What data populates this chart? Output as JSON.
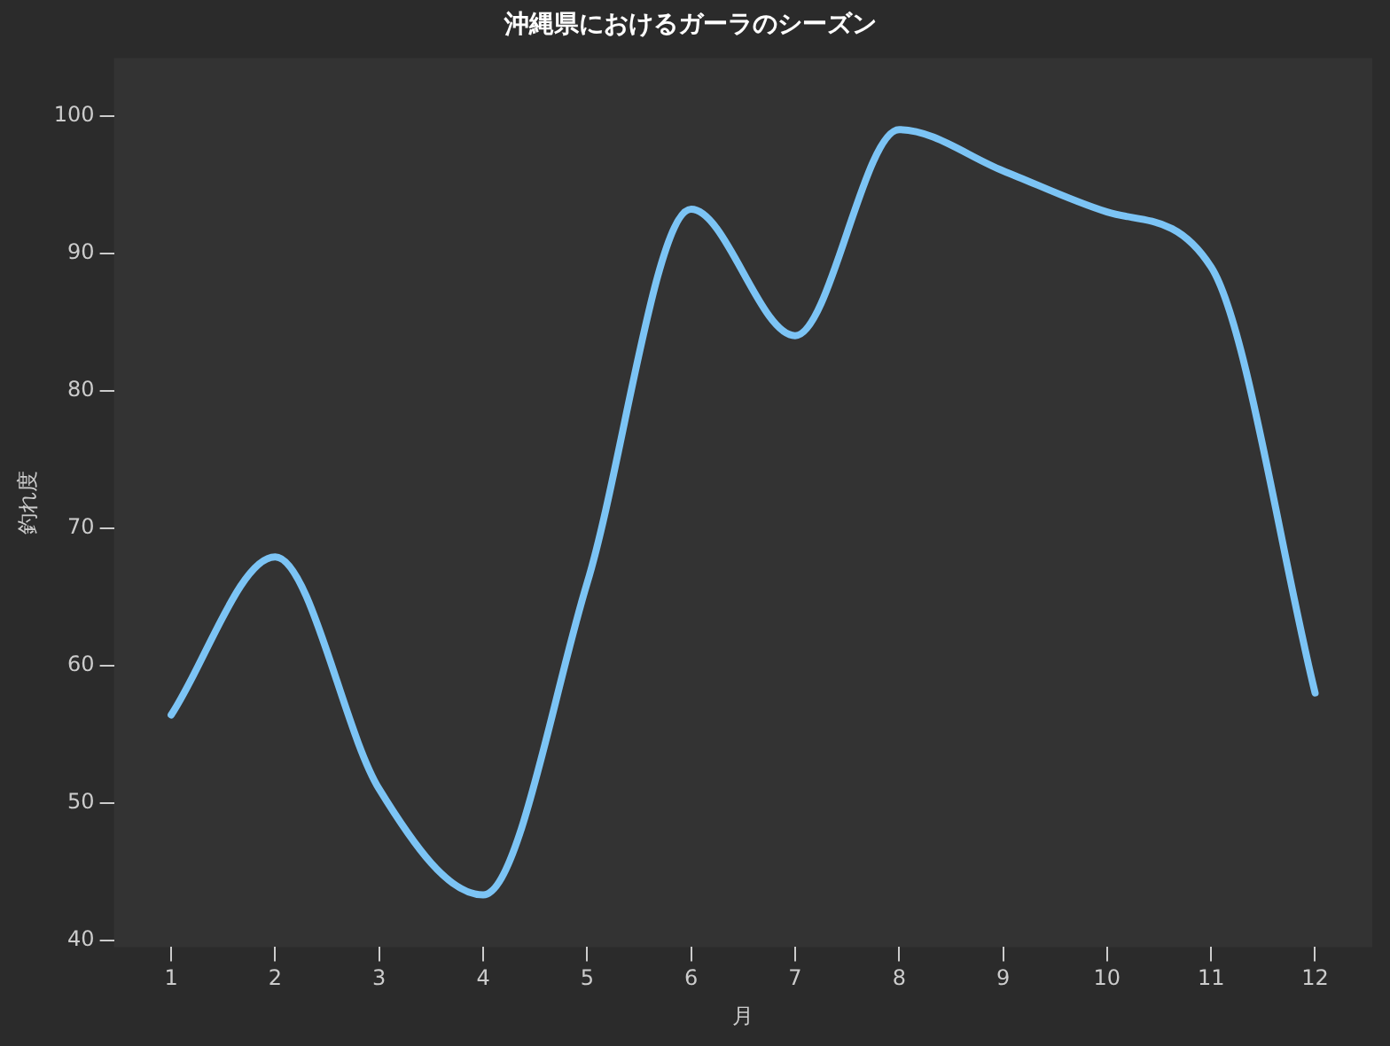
{
  "chart_data": {
    "type": "line",
    "title": "沖縄県におけるガーラのシーズン",
    "xlabel": "月",
    "ylabel": "釣れ度",
    "x": [
      1,
      2,
      3,
      4,
      5,
      6,
      7,
      8,
      9,
      10,
      11,
      12
    ],
    "series": [
      {
        "color": "#7cc4f5",
        "values": [
          56.4,
          67.9,
          51,
          43.3,
          66,
          93.2,
          84,
          99,
          96,
          93,
          89,
          58
        ]
      }
    ],
    "xlim": [
      0.45,
      12.55
    ],
    "xticks": [
      1,
      2,
      3,
      4,
      5,
      6,
      7,
      8,
      9,
      10,
      11,
      12
    ],
    "ylim": [
      39.5,
      104.2
    ],
    "yticks": [
      40,
      50,
      60,
      70,
      80,
      90,
      100
    ],
    "grid": false,
    "legend": false,
    "marker": "none",
    "line_style": "solid"
  }
}
